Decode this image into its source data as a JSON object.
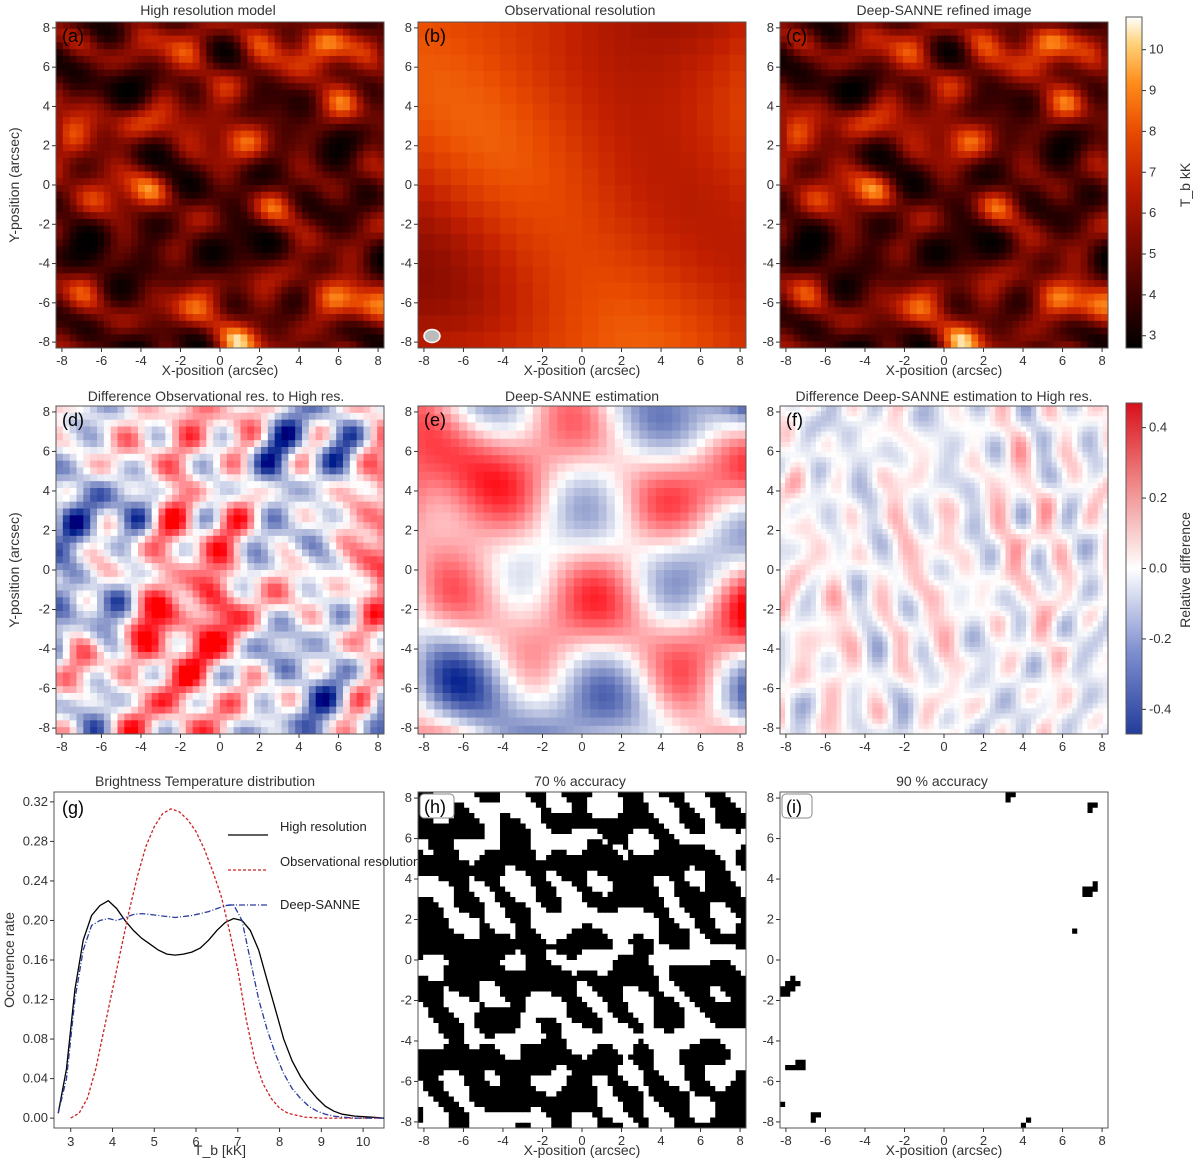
{
  "panels": [
    {
      "id": "a",
      "label": "(a)",
      "title": "High resolution model",
      "kind": "thermal",
      "seed": 11,
      "blur": 0,
      "xlabel": "X-position (arcsec)",
      "ylabel": "Y-position (arcsec)",
      "beam": false
    },
    {
      "id": "b",
      "label": "(b)",
      "title": "Observational resolution",
      "kind": "thermal",
      "seed": 12,
      "blur": 1,
      "xlabel": "X-position (arcsec)",
      "ylabel": "",
      "beam": true
    },
    {
      "id": "c",
      "label": "(c)",
      "title": "Deep-SANNE refined image",
      "kind": "thermal",
      "seed": 11,
      "blur": 2,
      "xlabel": "X-position (arcsec)",
      "ylabel": "",
      "beam": false
    },
    {
      "id": "d",
      "label": "(d)",
      "title": "Difference Observational res. to High res.",
      "kind": "diff",
      "seed": 21,
      "amp": 1.0,
      "xlabel": "",
      "ylabel": "Y-position (arcsec)"
    },
    {
      "id": "e",
      "label": "(e)",
      "title": "Deep-SANNE estimation",
      "kind": "diff",
      "seed": 22,
      "amp": 0.8,
      "smooth": true,
      "xlabel": "",
      "ylabel": ""
    },
    {
      "id": "f",
      "label": "(f)",
      "title": "Difference Deep-SANNE estimation to High res.",
      "kind": "diff",
      "seed": 23,
      "amp": 0.35,
      "xlabel": "",
      "ylabel": ""
    },
    {
      "id": "h",
      "label": "(h)",
      "title": "70 % accuracy",
      "kind": "binary",
      "seed": 31,
      "threshold": 0.5,
      "xlabel": "X-position (arcsec)",
      "ylabel": ""
    },
    {
      "id": "i",
      "label": "(i)",
      "title": "90 % accuracy",
      "kind": "binary",
      "seed": 32,
      "threshold": 0.82,
      "xlabel": "X-position (arcsec)",
      "ylabel": ""
    }
  ],
  "map_ticks": [
    "-8",
    "-6",
    "-4",
    "-2",
    "0",
    "2",
    "4",
    "6",
    "8"
  ],
  "colorbars": {
    "thermal": {
      "label": "T_b kK",
      "ticks": [
        "3",
        "4",
        "5",
        "6",
        "7",
        "8",
        "9",
        "10"
      ],
      "range": [
        2.7,
        10.8
      ]
    },
    "diff": {
      "label": "Relative difference",
      "ticks": [
        "-0.4",
        "-0.2",
        "0.0",
        "0.2",
        "0.4"
      ],
      "range": [
        -0.47,
        0.47
      ]
    }
  },
  "chart_data": {
    "type": "line",
    "label": "(g)",
    "title": "Brightness Temperature distribution",
    "xlabel": "T_b [kK]",
    "ylabel": "Occurence rate",
    "xlim": [
      2.6,
      10.5
    ],
    "ylim": [
      -0.01,
      0.33
    ],
    "xticks": [
      3,
      4,
      5,
      6,
      7,
      8,
      9,
      10
    ],
    "yticks": [
      "0.00",
      "0.04",
      "0.08",
      "0.12",
      "0.16",
      "0.20",
      "0.24",
      "0.28",
      "0.32"
    ],
    "legend_position": "top-right",
    "series": [
      {
        "name": "High resolution",
        "color": "#000000",
        "dash": "none",
        "x": [
          2.7,
          2.9,
          3.1,
          3.3,
          3.5,
          3.7,
          3.9,
          4.1,
          4.3,
          4.5,
          4.7,
          4.9,
          5.1,
          5.3,
          5.5,
          5.7,
          5.9,
          6.1,
          6.3,
          6.5,
          6.7,
          6.9,
          7.1,
          7.3,
          7.5,
          7.7,
          7.9,
          8.1,
          8.3,
          8.5,
          8.7,
          8.9,
          9.1,
          9.3,
          9.5,
          9.8,
          10.2,
          10.5
        ],
        "y": [
          0.005,
          0.05,
          0.13,
          0.18,
          0.205,
          0.215,
          0.22,
          0.212,
          0.2,
          0.19,
          0.182,
          0.176,
          0.17,
          0.166,
          0.165,
          0.166,
          0.168,
          0.172,
          0.18,
          0.19,
          0.198,
          0.202,
          0.2,
          0.19,
          0.17,
          0.14,
          0.11,
          0.08,
          0.058,
          0.042,
          0.03,
          0.02,
          0.012,
          0.007,
          0.004,
          0.002,
          0.001,
          0.0
        ]
      },
      {
        "name": "Observational resolution",
        "color": "#cc2222",
        "dash": "3,2",
        "x": [
          3.0,
          3.2,
          3.4,
          3.6,
          3.8,
          4.0,
          4.2,
          4.4,
          4.6,
          4.8,
          5.0,
          5.2,
          5.4,
          5.6,
          5.8,
          6.0,
          6.2,
          6.4,
          6.6,
          6.8,
          7.0,
          7.2,
          7.4,
          7.6,
          7.8,
          8.0,
          8.2,
          8.4,
          8.6,
          9.0,
          9.5,
          10.5
        ],
        "y": [
          0.0,
          0.005,
          0.02,
          0.05,
          0.09,
          0.13,
          0.17,
          0.21,
          0.245,
          0.275,
          0.295,
          0.308,
          0.313,
          0.31,
          0.302,
          0.29,
          0.272,
          0.25,
          0.225,
          0.19,
          0.15,
          0.1,
          0.06,
          0.035,
          0.02,
          0.01,
          0.005,
          0.003,
          0.001,
          0.0,
          0.0,
          0.0
        ]
      },
      {
        "name": "Deep-SANNE",
        "color": "#2a3b9a",
        "dash": "6,2,1,2",
        "x": [
          2.7,
          2.9,
          3.1,
          3.3,
          3.5,
          3.7,
          3.9,
          4.1,
          4.3,
          4.5,
          4.7,
          4.9,
          5.1,
          5.3,
          5.5,
          5.7,
          5.9,
          6.1,
          6.3,
          6.5,
          6.7,
          6.9,
          7.1,
          7.3,
          7.5,
          7.7,
          7.9,
          8.1,
          8.3,
          8.5,
          8.7,
          8.9,
          9.1,
          9.3,
          9.5,
          9.8,
          10.2,
          10.5
        ],
        "y": [
          0.005,
          0.04,
          0.12,
          0.17,
          0.195,
          0.2,
          0.202,
          0.2,
          0.203,
          0.206,
          0.207,
          0.206,
          0.205,
          0.204,
          0.203,
          0.204,
          0.205,
          0.207,
          0.209,
          0.212,
          0.215,
          0.216,
          0.2,
          0.16,
          0.12,
          0.09,
          0.065,
          0.045,
          0.03,
          0.02,
          0.012,
          0.007,
          0.004,
          0.002,
          0.001,
          0.0,
          0.0,
          0.0
        ]
      }
    ]
  }
}
